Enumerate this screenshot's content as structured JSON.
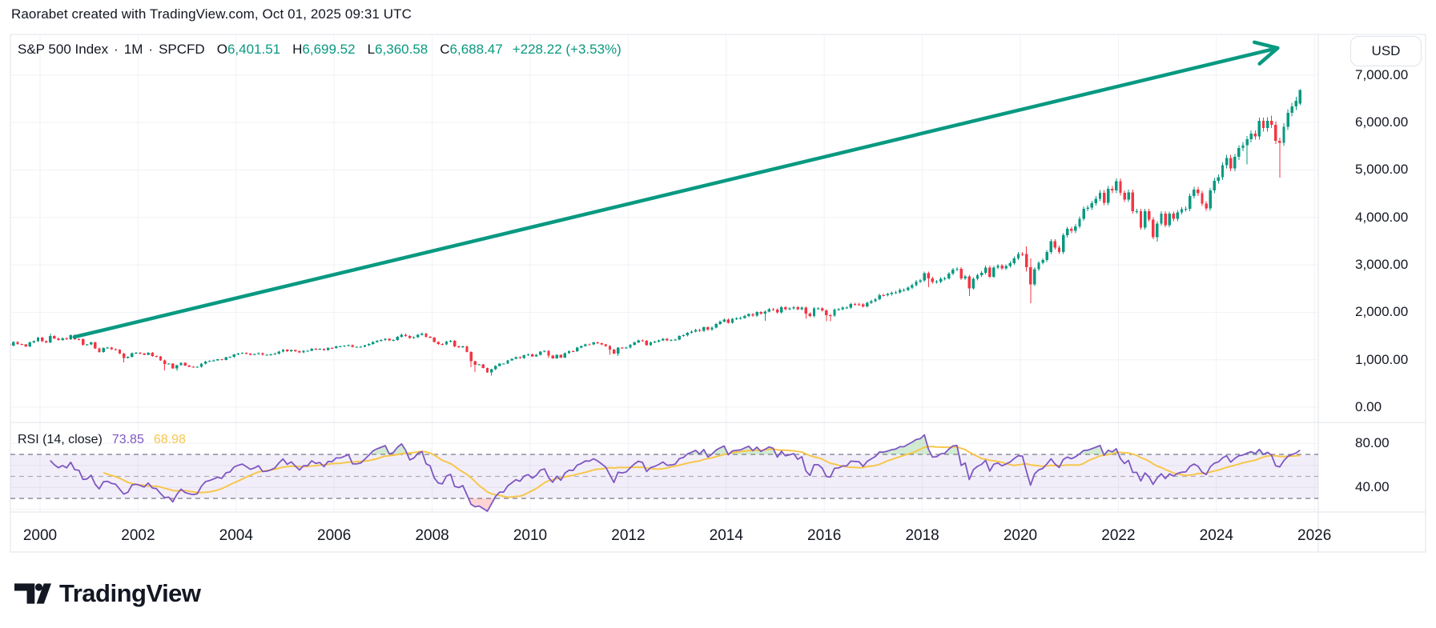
{
  "header": {
    "title": "Raorabet created with TradingView.com, Oct 01, 2025 09:31 UTC"
  },
  "legend": {
    "symbol": "S&P 500 Index",
    "sep": "·",
    "interval": "1M",
    "exchange": "SPCFD",
    "o_label": "O",
    "o": "6,401.51",
    "h_label": "H",
    "h": "6,699.52",
    "l_label": "L",
    "l": "6,360.58",
    "c_label": "C",
    "c": "6,688.47",
    "change": "+228.22 (+3.53%)"
  },
  "rsi_legend": {
    "title": "RSI (14, close)",
    "value": "73.85",
    "ma_value": "68.98"
  },
  "axis": {
    "currency": "USD",
    "price_ticks": [
      {
        "value": 7000,
        "label": "7,000.00"
      },
      {
        "value": 6000,
        "label": "6,000.00"
      },
      {
        "value": 5000,
        "label": "5,000.00"
      },
      {
        "value": 4000,
        "label": "4,000.00"
      },
      {
        "value": 3000,
        "label": "3,000.00"
      },
      {
        "value": 2000,
        "label": "2,000.00"
      },
      {
        "value": 1000,
        "label": "1,000.00"
      },
      {
        "value": 0,
        "label": "0.00"
      }
    ],
    "rsi_ticks": [
      {
        "value": 80,
        "label": "80.00"
      },
      {
        "value": 40,
        "label": "40.00"
      }
    ],
    "time_ticks": [
      {
        "year": 2000,
        "label": "2000"
      },
      {
        "year": 2002,
        "label": "2002"
      },
      {
        "year": 2004,
        "label": "2004"
      },
      {
        "year": 2006,
        "label": "2006"
      },
      {
        "year": 2008,
        "label": "2008"
      },
      {
        "year": 2010,
        "label": "2010"
      },
      {
        "year": 2012,
        "label": "2012"
      },
      {
        "year": 2014,
        "label": "2014"
      },
      {
        "year": 2016,
        "label": "2016"
      },
      {
        "year": 2018,
        "label": "2018"
      },
      {
        "year": 2020,
        "label": "2020"
      },
      {
        "year": 2022,
        "label": "2022"
      },
      {
        "year": 2024,
        "label": "2024"
      },
      {
        "year": 2026,
        "label": "2026"
      }
    ]
  },
  "footer": {
    "brand": "TradingView"
  },
  "colors": {
    "up": "#089981",
    "down": "#f23645",
    "arrow": "#089981",
    "rsi": "#7e57c2",
    "rsi_ma": "#f7c64b",
    "band_fill": "rgba(126,87,194,0.10)",
    "overbought_fill": "rgba(76,175,80,0.25)",
    "oversold_fill": "rgba(255,82,82,0.25)",
    "dashed_level": "#787b86",
    "grid": "#f0f2f6",
    "border": "#e0e3eb",
    "text": "#131722",
    "legend_value_green": "#089981"
  },
  "chart_data": [
    {
      "type": "candlestick",
      "title": "S&P 500 Index · 1M · SPCFD",
      "ylabel": "USD",
      "ylim": [
        -320,
        8110
      ],
      "xlim_years": [
        1998.95,
        2026.45
      ],
      "grid": true,
      "last_bar": {
        "open": 6401.51,
        "high": 6699.52,
        "low": 6360.58,
        "close": 6688.47,
        "change": "+228.22 (+3.53%)"
      },
      "start_month": "1999-01",
      "default_wick_percent": 1.2,
      "monthly_closes": {
        "1999": [
          1279,
          1238,
          1286,
          1335,
          1301,
          1372,
          1328,
          1320,
          1282,
          1362,
          1388,
          1469
        ],
        "2000": [
          1394,
          1366,
          1498,
          1452,
          1420,
          1454,
          1430,
          1517,
          1436,
          1429,
          1314,
          1320
        ],
        "2001": [
          1366,
          1239,
          1160,
          1249,
          1255,
          1224,
          1211,
          1133,
          1040,
          1059,
          1139,
          1148
        ],
        "2002": [
          1130,
          1106,
          1147,
          1076,
          1067,
          989,
          911,
          916,
          815,
          885,
          936,
          879
        ],
        "2003": [
          855,
          841,
          848,
          916,
          963,
          974,
          990,
          1008,
          995,
          1050,
          1058,
          1111
        ],
        "2004": [
          1131,
          1144,
          1126,
          1107,
          1120,
          1140,
          1101,
          1104,
          1114,
          1130,
          1173,
          1211
        ],
        "2005": [
          1181,
          1203,
          1180,
          1156,
          1191,
          1191,
          1234,
          1220,
          1228,
          1207,
          1249,
          1248
        ],
        "2006": [
          1280,
          1280,
          1294,
          1310,
          1270,
          1270,
          1276,
          1303,
          1335,
          1377,
          1400,
          1418
        ],
        "2007": [
          1438,
          1406,
          1420,
          1482,
          1530,
          1503,
          1455,
          1473,
          1526,
          1549,
          1481,
          1468
        ],
        "2008": [
          1378,
          1330,
          1322,
          1385,
          1400,
          1280,
          1267,
          1282,
          1166,
          968,
          896,
          903
        ],
        "2009": [
          825,
          735,
          797,
          872,
          919,
          919,
          987,
          1020,
          1057,
          1036,
          1095,
          1115
        ],
        "2010": [
          1073,
          1104,
          1169,
          1186,
          1089,
          1030,
          1101,
          1049,
          1141,
          1183,
          1180,
          1257
        ],
        "2011": [
          1286,
          1327,
          1325,
          1363,
          1345,
          1320,
          1292,
          1218,
          1131,
          1253,
          1246,
          1257
        ],
        "2012": [
          1312,
          1365,
          1408,
          1397,
          1310,
          1362,
          1379,
          1406,
          1440,
          1412,
          1416,
          1426
        ],
        "2013": [
          1498,
          1514,
          1569,
          1597,
          1630,
          1606,
          1685,
          1632,
          1681,
          1756,
          1805,
          1848
        ],
        "2014": [
          1782,
          1859,
          1872,
          1883,
          1923,
          1960,
          1930,
          2003,
          1972,
          2018,
          2067,
          2058
        ],
        "2015": [
          1994,
          2104,
          2067,
          2085,
          2107,
          2063,
          2103,
          1972,
          1920,
          2079,
          2080,
          2043
        ],
        "2016": [
          1940,
          1932,
          2059,
          2065,
          2096,
          2098,
          2173,
          2170,
          2168,
          2126,
          2198,
          2238
        ],
        "2017": [
          2278,
          2363,
          2362,
          2384,
          2411,
          2423,
          2470,
          2471,
          2519,
          2575,
          2647,
          2673
        ],
        "2018": [
          2823,
          2713,
          2640,
          2648,
          2705,
          2718,
          2816,
          2901,
          2913,
          2711,
          2760,
          2506
        ],
        "2019": [
          2704,
          2784,
          2834,
          2945,
          2752,
          2941,
          2980,
          2926,
          2976,
          3037,
          3140,
          3230
        ],
        "2020": [
          3225,
          2954,
          2584,
          2912,
          3044,
          3100,
          3271,
          3500,
          3363,
          3269,
          3621,
          3756
        ],
        "2021": [
          3714,
          3811,
          3972,
          4181,
          4204,
          4297,
          4395,
          4522,
          4307,
          4605,
          4567,
          4766
        ],
        "2022": [
          4515,
          4373,
          4530,
          4131,
          4132,
          3785,
          4130,
          3955,
          3585,
          3871,
          4080,
          3839
        ],
        "2023": [
          4076,
          3970,
          4109,
          4169,
          4179,
          4450,
          4588,
          4507,
          4288,
          4193,
          4567,
          4769
        ],
        "2024": [
          4845,
          5096,
          5254,
          5035,
          5277,
          5460,
          5522,
          5648,
          5762,
          5705,
          6032,
          5881
        ],
        "2025": [
          6040,
          5954,
          5611,
          5569,
          5911,
          6204,
          6339,
          6460,
          6688.47
        ]
      },
      "wick_overrides": {
        "2000-03": {
          "high": 1553
        },
        "2001-09": {
          "low": 944
        },
        "2002-07": {
          "low": 776
        },
        "2002-10": {
          "low": 769
        },
        "2007-10": {
          "high": 1576
        },
        "2008-10": {
          "low": 840
        },
        "2008-11": {
          "low": 741
        },
        "2009-03": {
          "low": 667
        },
        "2010-05": {
          "low": 1041
        },
        "2011-08": {
          "low": 1102
        },
        "2011-10": {
          "low": 1075
        },
        "2014-10": {
          "low": 1821
        },
        "2015-08": {
          "low": 1867
        },
        "2016-01": {
          "low": 1812
        },
        "2016-02": {
          "low": 1810
        },
        "2018-02": {
          "low": 2533
        },
        "2018-12": {
          "low": 2347
        },
        "2020-02": {
          "high": 3393,
          "low": 2856
        },
        "2020-03": {
          "high": 3137,
          "low": 2192
        },
        "2022-01": {
          "high": 4818
        },
        "2022-10": {
          "low": 3492
        },
        "2024-08": {
          "low": 5119
        },
        "2025-02": {
          "high": 6147
        },
        "2025-04": {
          "low": 4835
        },
        "2025-09": {
          "open": 6401.51,
          "high": 6699.52,
          "low": 6360.58,
          "close": 6688.47
        }
      },
      "trend_arrow": {
        "from_year": 2000.7,
        "from_price": 1480,
        "to_year": 2025.25,
        "to_price": 7570
      }
    },
    {
      "type": "line",
      "title": "RSI (14, close)",
      "series": [
        {
          "name": "RSI",
          "period": 14,
          "source": "close",
          "current": 73.85,
          "color": "#7e57c2"
        },
        {
          "name": "RSI-based MA",
          "period": 14,
          "current": 68.98,
          "color": "#f7c64b"
        }
      ],
      "levels": {
        "overbought": 70,
        "middle": 50,
        "oversold": 30
      },
      "ylim": [
        17.6,
        99.1
      ],
      "y_ticks": [
        80,
        40
      ],
      "band": [
        30,
        70
      ],
      "legend_position": "top-left"
    }
  ]
}
